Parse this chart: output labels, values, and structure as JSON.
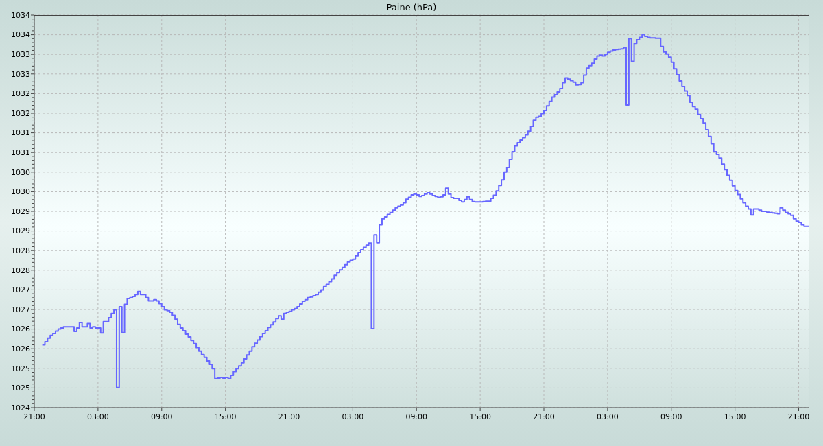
{
  "chart_data": {
    "type": "step",
    "title": "Paine (hPa)",
    "color": "#6666ff",
    "grid": true,
    "ylim": [
      1024,
      1034
    ],
    "yticks": [
      1024,
      {
        "value": 1024.1,
        "label": null
      },
      {
        "value": 1024.2,
        "label": null
      },
      {
        "value": 1024.3,
        "label": null
      },
      {
        "value": 1024.4,
        "label": null
      },
      {
        "value": 1024.5,
        "label": "1025"
      },
      {
        "value": 1024.6,
        "label": null
      },
      {
        "value": 1024.7,
        "label": null
      },
      {
        "value": 1024.8,
        "label": null
      },
      {
        "value": 1024.9,
        "label": null
      },
      1025,
      {
        "value": 1025.1,
        "label": null
      },
      {
        "value": 1025.2,
        "label": null
      },
      {
        "value": 1025.3,
        "label": null
      },
      {
        "value": 1025.4,
        "label": null
      },
      {
        "value": 1025.5,
        "label": "1026"
      },
      {
        "value": 1025.6,
        "label": null
      },
      {
        "value": 1025.7,
        "label": null
      },
      {
        "value": 1025.8,
        "label": null
      },
      {
        "value": 1025.9,
        "label": null
      },
      1026,
      {
        "value": 1026.1,
        "label": null
      },
      {
        "value": 1026.2,
        "label": null
      },
      {
        "value": 1026.3,
        "label": null
      },
      {
        "value": 1026.4,
        "label": null
      },
      {
        "value": 1026.5,
        "label": "1027"
      },
      {
        "value": 1026.6,
        "label": null
      },
      {
        "value": 1026.7,
        "label": null
      },
      {
        "value": 1026.8,
        "label": null
      },
      {
        "value": 1026.9,
        "label": null
      },
      1027,
      {
        "value": 1027.1,
        "label": null
      },
      {
        "value": 1027.2,
        "label": null
      },
      {
        "value": 1027.3,
        "label": null
      },
      {
        "value": 1027.4,
        "label": null
      },
      {
        "value": 1027.5,
        "label": "1028"
      },
      {
        "value": 1027.6,
        "label": null
      },
      {
        "value": 1027.7,
        "label": null
      },
      {
        "value": 1027.8,
        "label": null
      },
      {
        "value": 1027.9,
        "label": null
      },
      1028,
      {
        "value": 1028.1,
        "label": null
      },
      {
        "value": 1028.2,
        "label": null
      },
      {
        "value": 1028.3,
        "label": null
      },
      {
        "value": 1028.4,
        "label": null
      },
      {
        "value": 1028.5,
        "label": "1029"
      },
      {
        "value": 1028.6,
        "label": null
      },
      {
        "value": 1028.7,
        "label": null
      },
      {
        "value": 1028.8,
        "label": null
      },
      {
        "value": 1028.9,
        "label": null
      },
      1029,
      {
        "value": 1029.1,
        "label": null
      },
      {
        "value": 1029.2,
        "label": null
      },
      {
        "value": 1029.3,
        "label": null
      },
      {
        "value": 1029.4,
        "label": null
      },
      {
        "value": 1029.5,
        "label": "1030"
      },
      {
        "value": 1029.6,
        "label": null
      },
      {
        "value": 1029.7,
        "label": null
      },
      {
        "value": 1029.8,
        "label": null
      },
      {
        "value": 1029.9,
        "label": null
      },
      1030,
      {
        "value": 1030.1,
        "label": null
      },
      {
        "value": 1030.2,
        "label": null
      },
      {
        "value": 1030.3,
        "label": null
      },
      {
        "value": 1030.4,
        "label": null
      },
      {
        "value": 1030.5,
        "label": "1031"
      },
      {
        "value": 1030.6,
        "label": null
      },
      {
        "value": 1030.7,
        "label": null
      },
      {
        "value": 1030.8,
        "label": null
      },
      {
        "value": 1030.9,
        "label": null
      },
      1031,
      {
        "value": 1031.1,
        "label": null
      },
      {
        "value": 1031.2,
        "label": null
      },
      {
        "value": 1031.3,
        "label": null
      },
      {
        "value": 1031.4,
        "label": null
      },
      {
        "value": 1031.5,
        "label": "1032"
      },
      {
        "value": 1031.6,
        "label": null
      },
      {
        "value": 1031.7,
        "label": null
      },
      {
        "value": 1031.8,
        "label": null
      },
      {
        "value": 1031.9,
        "label": null
      },
      1032,
      {
        "value": 1032.1,
        "label": null
      },
      {
        "value": 1032.2,
        "label": null
      },
      {
        "value": 1032.3,
        "label": null
      },
      {
        "value": 1032.4,
        "label": null
      },
      {
        "value": 1032.5,
        "label": "1033"
      },
      {
        "value": 1032.6,
        "label": null
      },
      {
        "value": 1032.7,
        "label": null
      },
      {
        "value": 1032.8,
        "label": null
      },
      {
        "value": 1032.9,
        "label": null
      },
      1033,
      {
        "value": 1033.1,
        "label": null
      },
      {
        "value": 1033.2,
        "label": null
      },
      {
        "value": 1033.3,
        "label": null
      },
      {
        "value": 1033.4,
        "label": null
      },
      {
        "value": 1033.5,
        "label": "1034"
      },
      {
        "value": 1033.6,
        "label": null
      },
      {
        "value": 1033.7,
        "label": null
      },
      {
        "value": 1033.8,
        "label": null
      },
      {
        "value": 1033.9,
        "label": null
      },
      1034
    ],
    "categories": [
      "21:00",
      null,
      null,
      null,
      null,
      null,
      null,
      null,
      null,
      null,
      null,
      null,
      null,
      null,
      null,
      null,
      null,
      null,
      null,
      null,
      null,
      null,
      null,
      null,
      "03:00",
      null,
      null,
      null,
      null,
      null,
      null,
      null,
      null,
      null,
      null,
      null,
      null,
      null,
      null,
      null,
      null,
      null,
      null,
      null,
      null,
      null,
      null,
      null,
      "09:00",
      null,
      null,
      null,
      null,
      null,
      null,
      null,
      null,
      null,
      null,
      null,
      null,
      null,
      null,
      null,
      null,
      null,
      null,
      null,
      null,
      null,
      null,
      null,
      "15:00",
      null,
      null,
      null,
      null,
      null,
      null,
      null,
      null,
      null,
      null,
      null,
      null,
      null,
      null,
      null,
      null,
      null,
      null,
      null,
      null,
      null,
      null,
      null,
      "21:00",
      null,
      null,
      null,
      null,
      null,
      null,
      null,
      null,
      null,
      null,
      null,
      null,
      null,
      null,
      null,
      null,
      null,
      null,
      null,
      null,
      null,
      null,
      null,
      "03:00",
      null,
      null,
      null,
      null,
      null,
      null,
      null,
      null,
      null,
      null,
      null,
      null,
      null,
      null,
      null,
      null,
      null,
      null,
      null,
      null,
      null,
      null,
      null,
      "09:00",
      null,
      null,
      null,
      null,
      null,
      null,
      null,
      null,
      null,
      null,
      null,
      null,
      null,
      null,
      null,
      null,
      null,
      null,
      null,
      null,
      null,
      null,
      null,
      "15:00",
      null,
      null,
      null,
      null,
      null,
      null,
      null,
      null,
      null,
      null,
      null,
      null,
      null,
      null,
      null,
      null,
      null,
      null,
      null,
      null,
      null,
      null,
      null,
      "21:00",
      null,
      null,
      null,
      null,
      null,
      null,
      null,
      null,
      null,
      null,
      null,
      null,
      null,
      null,
      null,
      null,
      null,
      null,
      null,
      null,
      null,
      null,
      null,
      "03:00",
      null,
      null,
      null,
      null,
      null,
      null,
      null,
      null,
      null,
      null,
      null,
      null,
      null,
      null,
      null,
      null,
      null,
      null,
      null,
      null,
      null,
      null,
      null,
      "09:00",
      null,
      null,
      null,
      null,
      null,
      null,
      null,
      null,
      null,
      null,
      null,
      null,
      null,
      null,
      null,
      null,
      null,
      null,
      null,
      null,
      null,
      null,
      null,
      "15:00",
      null,
      null,
      null,
      null,
      null,
      null,
      null,
      null,
      null,
      null,
      null,
      null,
      null,
      null,
      null,
      null,
      null,
      null,
      null,
      null,
      null,
      null,
      null,
      "21:00",
      null,
      null,
      null,
      null
    ],
    "values": [
      null,
      null,
      null,
      1025.6,
      1025.68,
      1025.77,
      1025.84,
      1025.89,
      1025.95,
      1026.0,
      1026.03,
      1026.06,
      1026.06,
      1026.06,
      1026.06,
      1025.94,
      1026.03,
      1026.17,
      1026.06,
      1026.06,
      1026.14,
      1026.03,
      1026.06,
      1026.03,
      1026.03,
      1025.9,
      1026.19,
      1026.19,
      1026.29,
      1026.4,
      1026.49,
      1024.51,
      1026.57,
      1025.91,
      1026.63,
      1026.78,
      1026.8,
      1026.83,
      1026.88,
      1026.96,
      1026.88,
      1026.88,
      1026.8,
      1026.72,
      1026.72,
      1026.75,
      1026.72,
      1026.65,
      1026.57,
      1026.49,
      1026.47,
      1026.43,
      1026.35,
      1026.25,
      1026.12,
      1026.03,
      1025.96,
      1025.87,
      1025.8,
      1025.71,
      1025.63,
      1025.53,
      1025.44,
      1025.35,
      1025.28,
      1025.19,
      1025.1,
      1024.99,
      1024.74,
      1024.75,
      1024.77,
      1024.75,
      1024.77,
      1024.74,
      1024.82,
      1024.92,
      1024.99,
      1025.06,
      1025.14,
      1025.24,
      1025.34,
      1025.44,
      1025.55,
      1025.64,
      1025.72,
      1025.81,
      1025.89,
      1025.96,
      1026.04,
      1026.11,
      1026.18,
      1026.27,
      1026.34,
      1026.25,
      1026.4,
      1026.43,
      1026.45,
      1026.49,
      1026.52,
      1026.57,
      1026.64,
      1026.71,
      1026.75,
      1026.8,
      1026.82,
      1026.85,
      1026.88,
      1026.94,
      1027.0,
      1027.08,
      1027.14,
      1027.21,
      1027.28,
      1027.37,
      1027.44,
      1027.51,
      1027.57,
      1027.64,
      1027.71,
      1027.75,
      1027.78,
      1027.87,
      1027.95,
      1028.02,
      1028.08,
      1028.14,
      1028.19,
      1026.01,
      1028.4,
      1028.2,
      1028.66,
      1028.81,
      1028.86,
      1028.92,
      1028.97,
      1029.03,
      1029.09,
      1029.13,
      1029.16,
      1029.22,
      1029.31,
      1029.36,
      1029.42,
      1029.44,
      1029.42,
      1029.38,
      1029.4,
      1029.44,
      1029.47,
      1029.44,
      1029.4,
      1029.38,
      1029.36,
      1029.37,
      1029.42,
      1029.59,
      1029.44,
      1029.35,
      1029.33,
      1029.33,
      1029.28,
      1029.24,
      1029.3,
      1029.37,
      1029.3,
      1029.25,
      1029.24,
      1029.24,
      1029.24,
      1029.25,
      1029.26,
      1029.26,
      1029.33,
      1029.41,
      1029.52,
      1029.66,
      1029.8,
      1030.0,
      1030.12,
      1030.33,
      1030.52,
      1030.67,
      1030.75,
      1030.82,
      1030.88,
      1030.95,
      1031.04,
      1031.17,
      1031.32,
      1031.4,
      1031.42,
      1031.49,
      1031.57,
      1031.69,
      1031.8,
      1031.91,
      1031.97,
      1032.04,
      1032.13,
      1032.28,
      1032.4,
      1032.37,
      1032.33,
      1032.29,
      1032.22,
      1032.23,
      1032.28,
      1032.47,
      1032.65,
      1032.71,
      1032.77,
      1032.88,
      1032.96,
      1032.98,
      1032.96,
      1033.0,
      1033.05,
      1033.08,
      1033.11,
      1033.12,
      1033.13,
      1033.14,
      1033.17,
      1031.71,
      1033.4,
      1032.82,
      1033.28,
      1033.37,
      1033.43,
      1033.5,
      1033.46,
      1033.43,
      1033.42,
      1033.42,
      1033.41,
      1033.41,
      1033.2,
      1033.06,
      1033.01,
      1032.93,
      1032.8,
      1032.63,
      1032.48,
      1032.32,
      1032.18,
      1032.07,
      1031.95,
      1031.78,
      1031.67,
      1031.6,
      1031.47,
      1031.36,
      1031.25,
      1031.08,
      1030.91,
      1030.72,
      1030.52,
      1030.45,
      1030.36,
      1030.2,
      1030.06,
      1029.92,
      1029.79,
      1029.65,
      1029.53,
      1029.43,
      1029.32,
      1029.22,
      1029.13,
      1029.06,
      1028.91,
      1029.06,
      1029.06,
      1029.03,
      1029.0,
      1029.0,
      1028.98,
      1028.97,
      1028.96,
      1028.95,
      1028.94,
      1029.09,
      1029.03,
      1028.97,
      1028.94,
      1028.9,
      1028.81,
      1028.75,
      1028.72,
      1028.66,
      1028.62,
      1028.62,
      1028.62
    ]
  }
}
